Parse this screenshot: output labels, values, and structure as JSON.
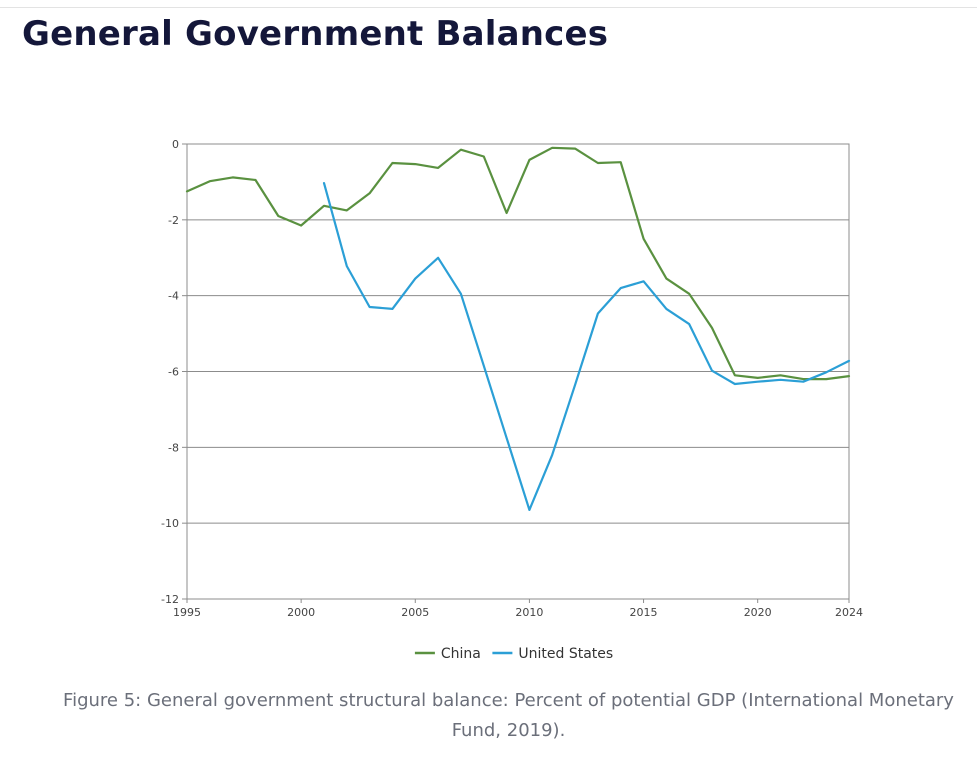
{
  "page": {
    "title": "General Government Balances",
    "caption": "Figure 5: General government structural balance: Percent of potential GDP (International Monetary Fund, 2019)."
  },
  "chart_data": {
    "type": "line",
    "title": "",
    "xlabel": "",
    "ylabel": "",
    "xlim": [
      1995,
      2024
    ],
    "ylim": [
      -12,
      0
    ],
    "x_ticks": [
      1995,
      2000,
      2005,
      2010,
      2015,
      2020,
      2024
    ],
    "y_ticks": [
      0,
      -2,
      -4,
      -6,
      -8,
      -10,
      -12
    ],
    "grid": "horizontal",
    "legend": "bottom-center",
    "series": [
      {
        "name": "China",
        "color": "#5a9140",
        "x": [
          1995,
          1996,
          1997,
          1998,
          1999,
          2000,
          2001,
          2002,
          2003,
          2004,
          2005,
          2006,
          2007,
          2008,
          2009,
          2010,
          2011,
          2012,
          2013,
          2014,
          2015,
          2016,
          2017,
          2018,
          2019,
          2020,
          2021,
          2022,
          2023,
          2024
        ],
        "y": [
          -1.25,
          -0.98,
          -0.88,
          -0.95,
          -1.9,
          -2.15,
          -1.63,
          -1.75,
          -1.3,
          -0.5,
          -0.53,
          -0.63,
          -0.15,
          -0.33,
          -1.82,
          -0.42,
          -0.1,
          -0.12,
          -0.5,
          -0.48,
          -2.5,
          -3.55,
          -3.95,
          -4.85,
          -6.1,
          -6.17,
          -6.1,
          -6.2,
          -6.2,
          -6.12
        ]
      },
      {
        "name": "United States",
        "color": "#2b9fd6",
        "x": [
          2001,
          2002,
          2003,
          2004,
          2005,
          2006,
          2007,
          2008,
          2009,
          2010,
          2011,
          2012,
          2013,
          2014,
          2015,
          2016,
          2017,
          2018,
          2019,
          2020,
          2021,
          2022,
          2023,
          2024
        ],
        "y": [
          -1.03,
          -3.22,
          -4.3,
          -4.35,
          -3.55,
          -3.0,
          -3.95,
          -5.85,
          -7.75,
          -9.65,
          -8.2,
          -6.35,
          -4.47,
          -3.8,
          -3.62,
          -4.35,
          -4.75,
          -5.98,
          -6.33,
          -6.27,
          -6.22,
          -6.27,
          -6.02,
          -5.72
        ]
      }
    ]
  }
}
